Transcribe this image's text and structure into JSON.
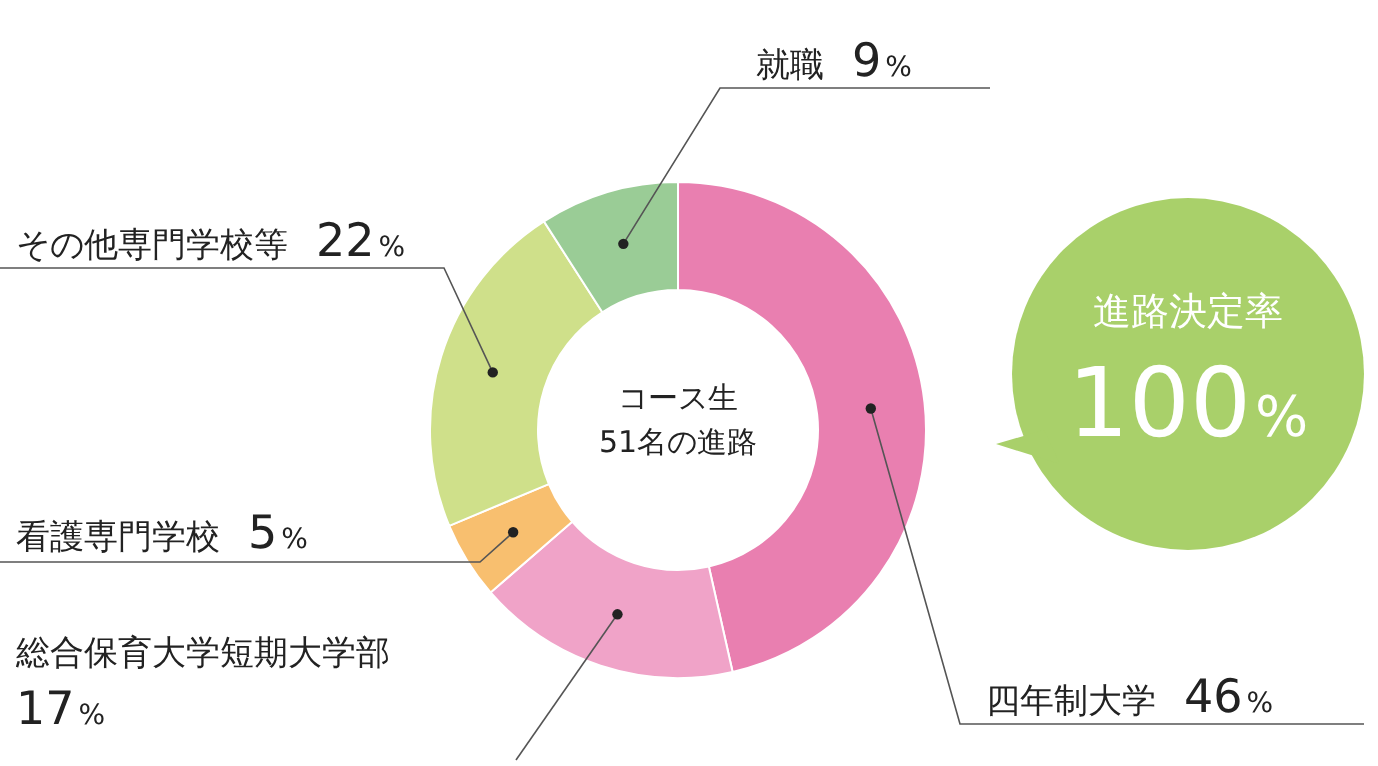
{
  "chart_data": {
    "type": "donut",
    "categories": [
      "四年制大学",
      "総合保育大学短期大学部",
      "看護専門学校",
      "その他専門学校等",
      "就職"
    ],
    "values": [
      46,
      17,
      5,
      22,
      9
    ],
    "colors": [
      "#e97fb0",
      "#f0a3c8",
      "#f8bf6f",
      "#cfe08a",
      "#9acc96"
    ],
    "value_labels": [
      "46%",
      "17%",
      "5%",
      "22%",
      "9%"
    ],
    "annotations": [
      "コース生\n51名の進路",
      "進路決定率\n100%"
    ]
  }
}
